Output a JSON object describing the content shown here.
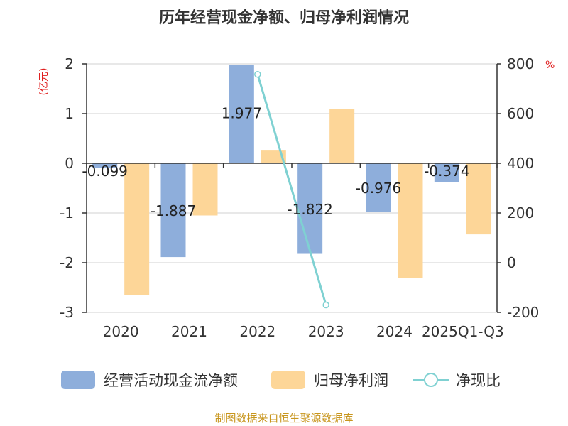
{
  "chart_data": {
    "type": "bar",
    "title": "历年经营现金净额、归母净利润情况",
    "categories": [
      "2020",
      "2021",
      "2022",
      "2023",
      "2024",
      "2025Q1-Q3"
    ],
    "left_axis": {
      "unit": "(亿元)",
      "range": [
        -3,
        2
      ],
      "ticks": [
        "2",
        "1",
        "0",
        "-1",
        "-2",
        "-3"
      ]
    },
    "right_axis": {
      "unit": "%",
      "range": [
        -200,
        800
      ],
      "ticks": [
        "800",
        "600",
        "400",
        "200",
        "0",
        "-200"
      ]
    },
    "series": [
      {
        "name": "经营活动现金流净额",
        "kind": "bar",
        "axis": "left",
        "color": "#8eaedb",
        "values": [
          -0.099,
          -1.887,
          1.977,
          -1.822,
          -0.976,
          -0.374
        ],
        "labels": [
          "-0.099",
          "-1.887",
          "1.977",
          "-1.822",
          "-0.976",
          "-0.374"
        ]
      },
      {
        "name": "归母净利润",
        "kind": "bar",
        "axis": "left",
        "color": "#fdd698",
        "values": [
          -2.65,
          -1.05,
          0.27,
          1.1,
          -2.3,
          -1.43
        ]
      },
      {
        "name": "净现比",
        "kind": "line",
        "axis": "right",
        "color": "#7fd1d2",
        "values": [
          null,
          null,
          758,
          -170,
          null,
          null
        ]
      }
    ],
    "grid": true,
    "legend_position": "bottom"
  },
  "source": "制图数据来自恒生聚源数据库"
}
